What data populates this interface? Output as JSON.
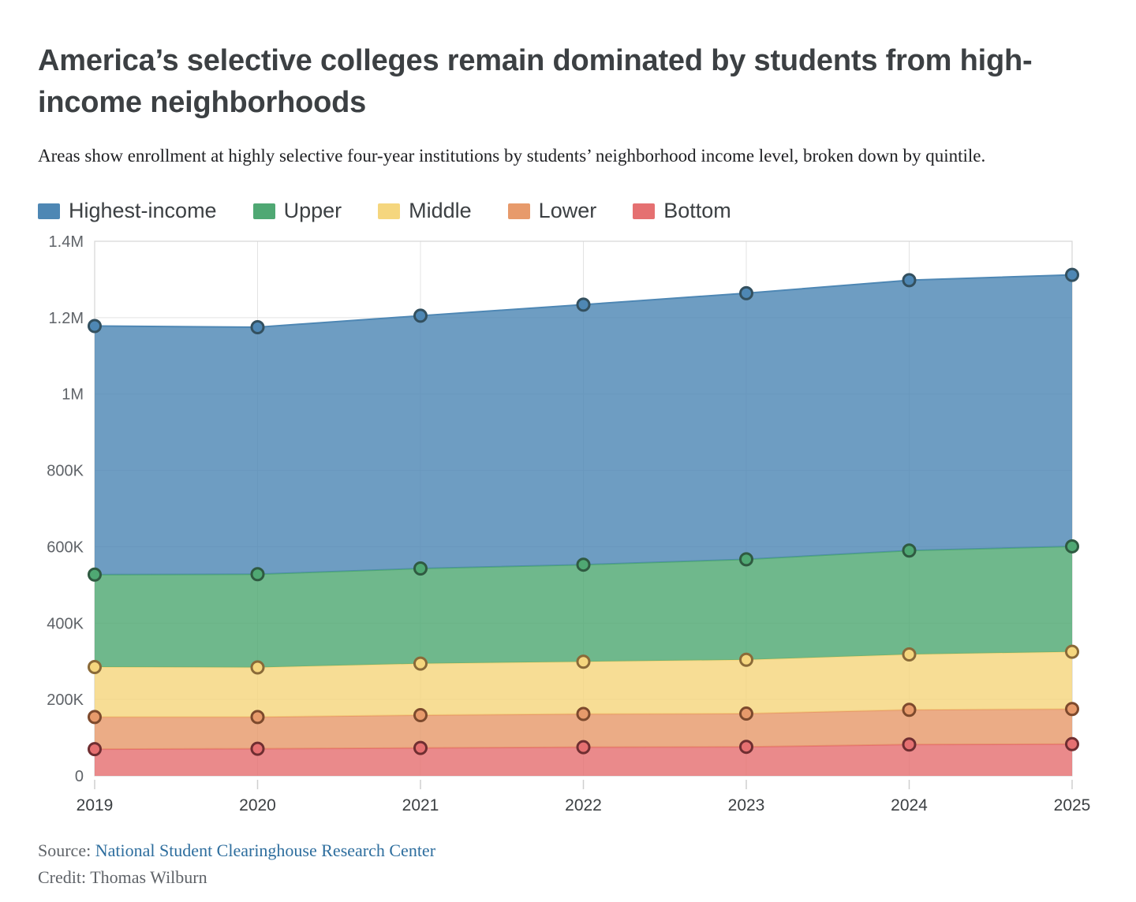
{
  "header": {
    "title": "America’s selective colleges remain dominated by students from high-income neighborhoods",
    "subtitle": "Areas show enrollment at highly selective four-year institutions by students’ neighborhood income level, broken down by quintile."
  },
  "chart_data": {
    "type": "area",
    "stacked": true,
    "title": "",
    "xlabel": "",
    "ylabel": "",
    "x": [
      "2019",
      "2020",
      "2021",
      "2022",
      "2023",
      "2024",
      "2025"
    ],
    "ylim": [
      0,
      1400000
    ],
    "y_ticks": [
      {
        "value": 0,
        "label": "0"
      },
      {
        "value": 200000,
        "label": "200K"
      },
      {
        "value": 400000,
        "label": "400K"
      },
      {
        "value": 600000,
        "label": "600K"
      },
      {
        "value": 800000,
        "label": "800K"
      },
      {
        "value": 1000000,
        "label": "1M"
      },
      {
        "value": 1200000,
        "label": "1.2M"
      },
      {
        "value": 1400000,
        "label": "1.4M"
      }
    ],
    "grid": true,
    "legend_position": "top",
    "series": [
      {
        "name": "Highest-income",
        "color": "#4e87b4",
        "dot_stroke": "#33505f",
        "values": [
          651000,
          647000,
          662000,
          681000,
          697000,
          708000,
          711000
        ]
      },
      {
        "name": "Upper",
        "color": "#4fa873",
        "dot_stroke": "#2f5a41",
        "values": [
          242000,
          244000,
          249000,
          254000,
          263000,
          272000,
          276000
        ]
      },
      {
        "name": "Middle",
        "color": "#f5d67e",
        "dot_stroke": "#8a6a38",
        "values": [
          131000,
          130000,
          135000,
          137000,
          141000,
          145000,
          150000
        ]
      },
      {
        "name": "Lower",
        "color": "#e79a6b",
        "dot_stroke": "#7d4a2d",
        "values": [
          84000,
          83000,
          86000,
          87000,
          87000,
          91000,
          92000
        ]
      },
      {
        "name": "Bottom",
        "color": "#e57071",
        "dot_stroke": "#6f2e31",
        "values": [
          70000,
          71000,
          73000,
          75000,
          76000,
          82000,
          83000
        ]
      }
    ],
    "cumulative_totals": [
      1178000,
      1175000,
      1205000,
      1234000,
      1264000,
      1298000,
      1312000
    ]
  },
  "footer": {
    "source_label": "Source:",
    "source_link_text": "National Student Clearinghouse Research Center",
    "credit": "Credit: Thomas Wilburn"
  },
  "style": {
    "grid_color": "#e3e3e3",
    "border_color": "#d5d5d5",
    "tick_color": "#cfcfcf",
    "axis_label_color": "#5f6368",
    "x_label_color": "#3c4043",
    "area_opacity": 0.82
  }
}
